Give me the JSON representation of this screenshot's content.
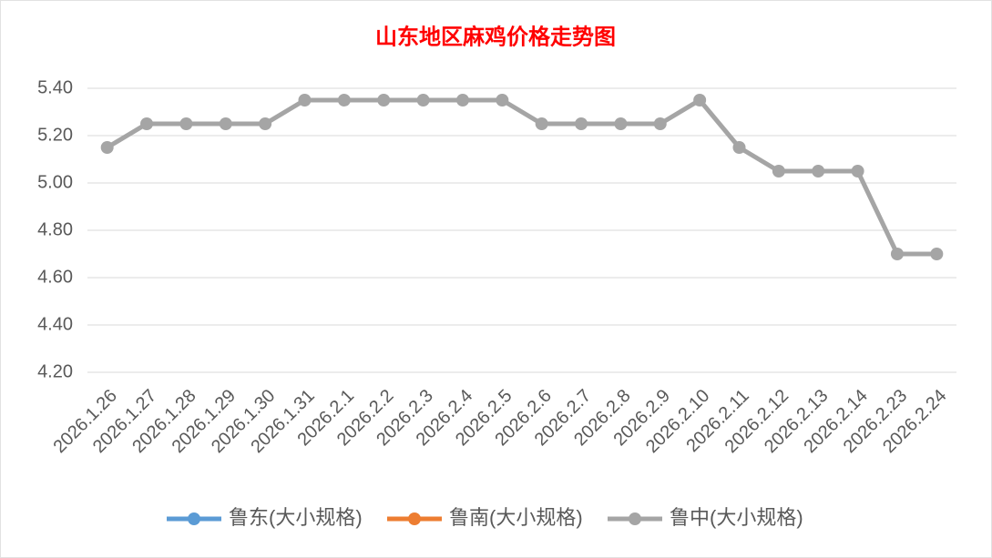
{
  "chart_data": {
    "type": "line",
    "title": "山东地区麻鸡价格走势图",
    "categories": [
      "2026.1.26",
      "2026.1.27",
      "2026.1.28",
      "2026.1.29",
      "2026.1.30",
      "2026.1.31",
      "2026.2.1",
      "2026.2.2",
      "2026.2.3",
      "2026.2.4",
      "2026.2.5",
      "2026.2.6",
      "2026.2.7",
      "2026.2.8",
      "2026.2.9",
      "2026.2.10",
      "2026.2.11",
      "2026.2.12",
      "2026.2.13",
      "2026.2.14",
      "2026.2.23",
      "2026.2.24"
    ],
    "series": [
      {
        "name": "鲁东(大小规格)",
        "color": "#5b9bd5",
        "values": [
          null,
          null,
          null,
          null,
          null,
          null,
          null,
          null,
          null,
          null,
          null,
          null,
          null,
          null,
          null,
          null,
          null,
          null,
          null,
          null,
          null,
          null
        ]
      },
      {
        "name": "鲁南(大小规格)",
        "color": "#ed7d31",
        "values": [
          null,
          null,
          null,
          null,
          null,
          null,
          null,
          null,
          null,
          null,
          null,
          null,
          null,
          null,
          null,
          null,
          null,
          null,
          null,
          null,
          null,
          null
        ]
      },
      {
        "name": "鲁中(大小规格)",
        "color": "#a5a5a5",
        "values": [
          5.15,
          5.25,
          5.25,
          5.25,
          5.25,
          5.35,
          5.35,
          5.35,
          5.35,
          5.35,
          5.35,
          5.25,
          5.25,
          5.25,
          5.25,
          5.35,
          5.15,
          5.05,
          5.05,
          5.05,
          4.7,
          4.7
        ]
      }
    ],
    "ylim": [
      4.2,
      5.4
    ],
    "yticks": [
      {
        "value": 4.2,
        "label": "4.20"
      },
      {
        "value": 4.4,
        "label": "4.40"
      },
      {
        "value": 4.6,
        "label": "4.60"
      },
      {
        "value": 4.8,
        "label": "4.80"
      },
      {
        "value": 5.0,
        "label": "5.00"
      },
      {
        "value": 5.2,
        "label": "5.20"
      },
      {
        "value": 5.4,
        "label": "5.40"
      }
    ],
    "grid": true
  }
}
